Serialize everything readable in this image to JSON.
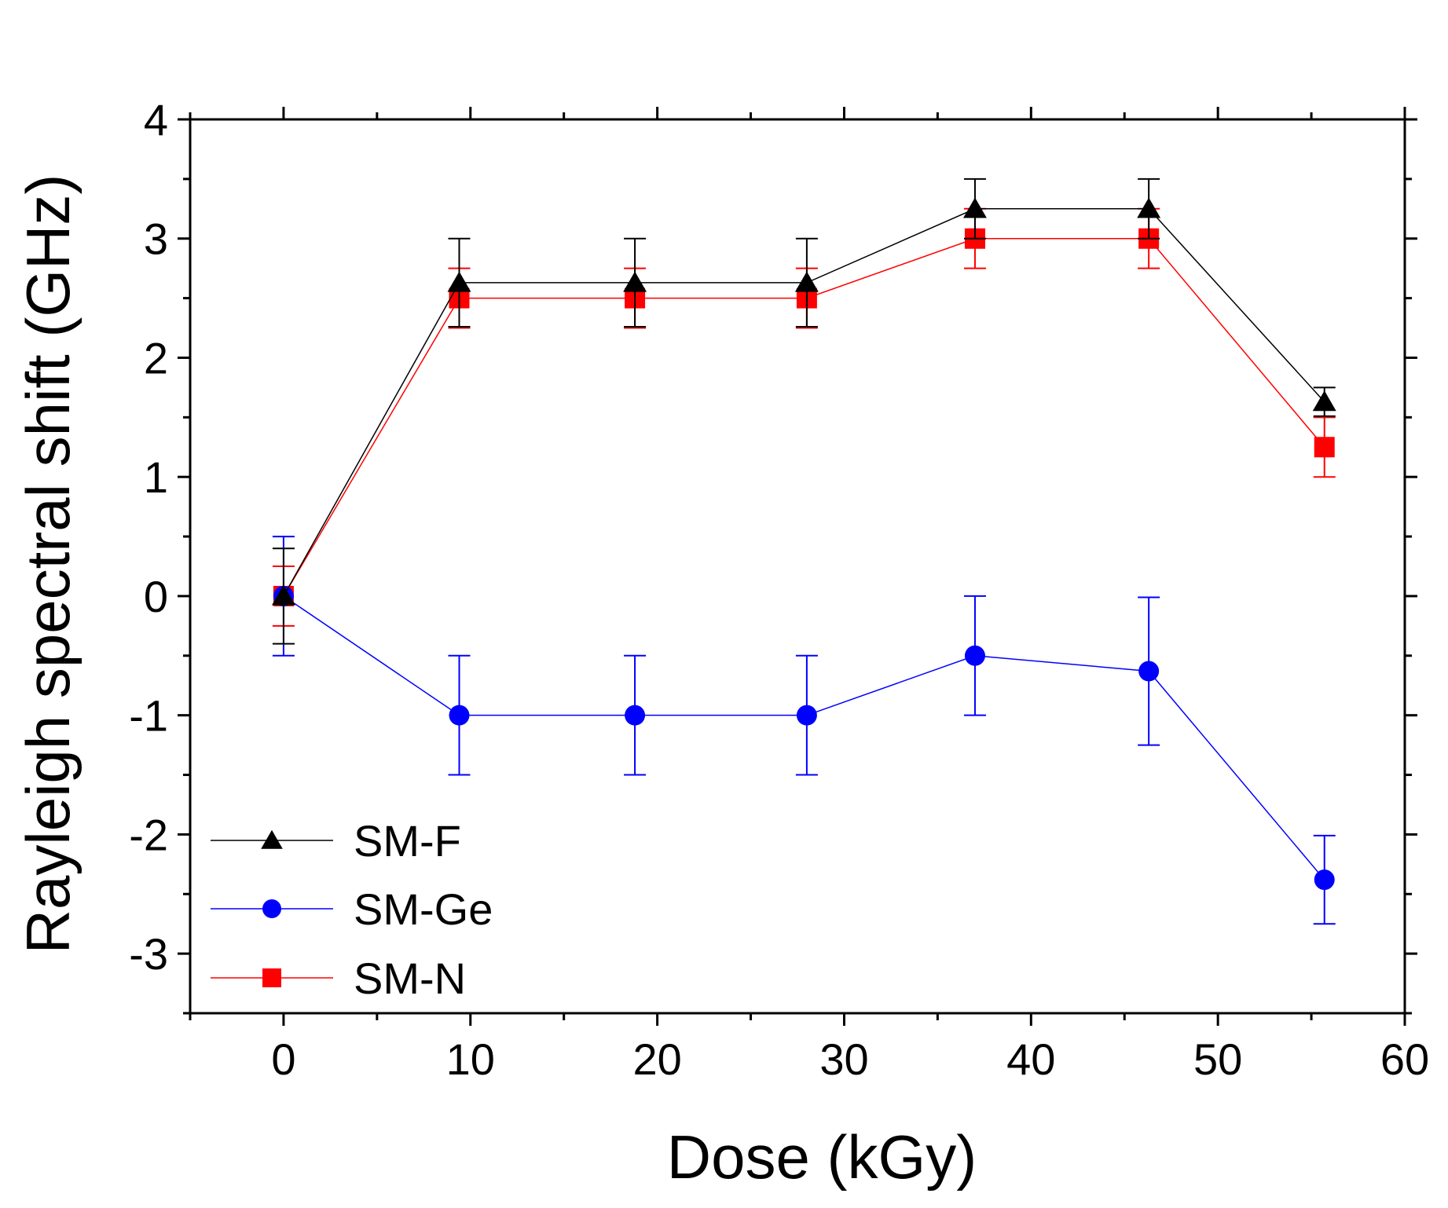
{
  "chart_data": {
    "type": "line",
    "xlabel": "Dose (kGy)",
    "ylabel": "Rayleigh spectral shift (GHz)",
    "xlim": [
      -5,
      60
    ],
    "ylim": [
      -3.5,
      4
    ],
    "x_ticks": [
      0,
      10,
      20,
      30,
      40,
      50,
      60
    ],
    "y_ticks": [
      -3,
      -2,
      -1,
      0,
      1,
      2,
      3,
      4
    ],
    "x_tick_labels": [
      "0",
      "10",
      "20",
      "30",
      "40",
      "50",
      "60"
    ],
    "y_tick_labels": [
      "-3",
      "-2",
      "-1",
      "0",
      "1",
      "2",
      "3",
      "4"
    ],
    "legend_position": "bottom-left",
    "series": [
      {
        "name": "SM-F",
        "color": "#000000",
        "marker": "triangle",
        "x": [
          0,
          9.4,
          18.8,
          28,
          37,
          46.3,
          55.7
        ],
        "y": [
          0,
          2.63,
          2.63,
          2.63,
          3.25,
          3.25,
          1.63
        ],
        "err": [
          0.4,
          0.37,
          0.37,
          0.37,
          0.25,
          0.25,
          0.12
        ]
      },
      {
        "name": "SM-Ge",
        "color": "#0000ff",
        "marker": "circle",
        "x": [
          0,
          9.4,
          18.8,
          28,
          37,
          46.3,
          55.7
        ],
        "y": [
          0,
          -1.0,
          -1.0,
          -1.0,
          -0.5,
          -0.63,
          -2.38
        ],
        "err": [
          0.5,
          0.5,
          0.5,
          0.5,
          0.5,
          0.62,
          0.37
        ]
      },
      {
        "name": "SM-N",
        "color": "#ff0000",
        "marker": "square",
        "x": [
          0,
          9.4,
          18.8,
          28,
          37,
          46.3,
          55.7
        ],
        "y": [
          0,
          2.5,
          2.5,
          2.5,
          3.0,
          3.0,
          1.25
        ],
        "err": [
          0.25,
          0.25,
          0.25,
          0.25,
          0.25,
          0.25,
          0.25
        ]
      }
    ]
  }
}
